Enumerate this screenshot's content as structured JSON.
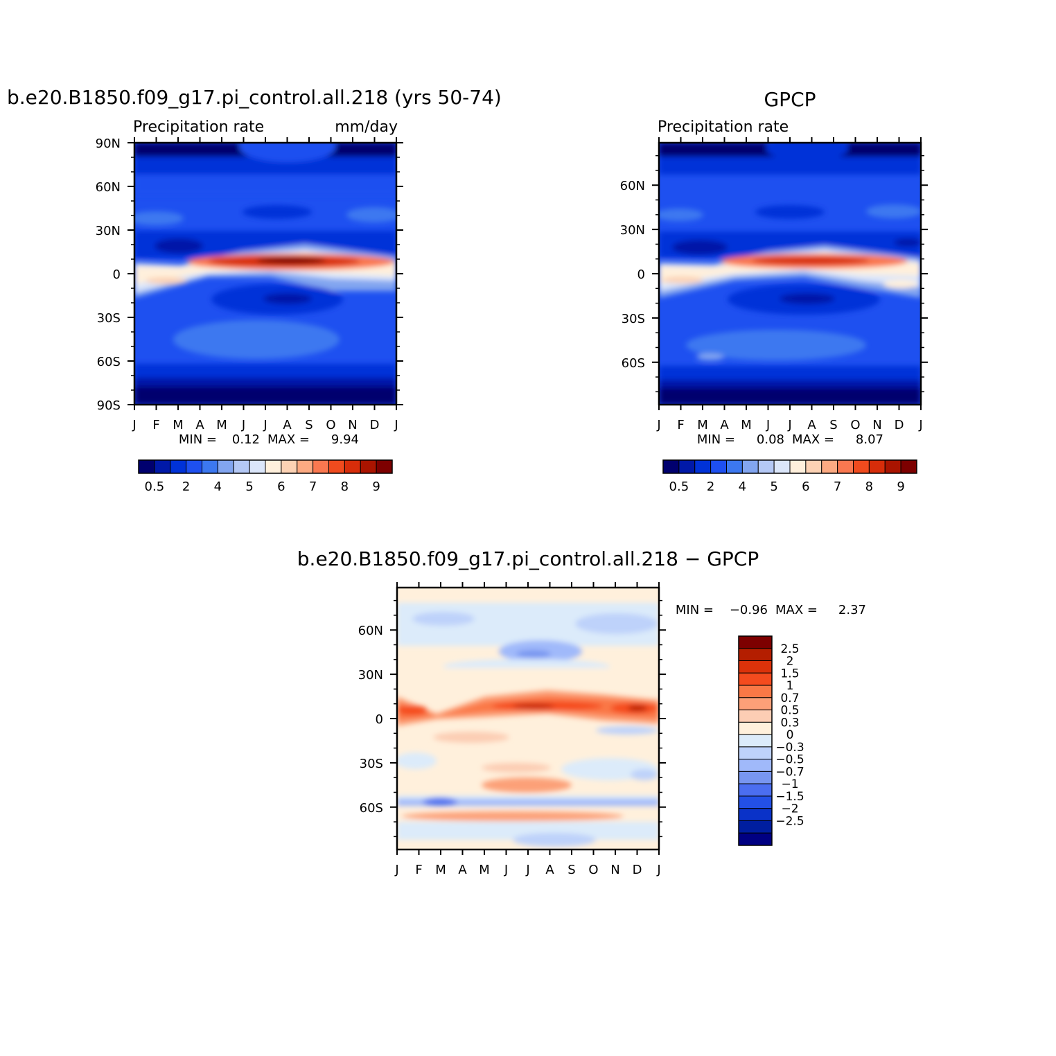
{
  "chart_data": [
    {
      "type": "heatmap",
      "title": "b.e20.B1850.f09_g17.pi_control.all.218 (yrs 50-74)",
      "subtitle_left": "Precipitation  rate",
      "subtitle_right": "mm/day",
      "x_tick_labels": [
        "J",
        "F",
        "M",
        "A",
        "M",
        "J",
        "J",
        "A",
        "S",
        "O",
        "N",
        "D",
        "J"
      ],
      "y_tick_labels": [
        "90N",
        "60N",
        "30N",
        "0",
        "30S",
        "60S",
        "90S"
      ],
      "y_tick_values": [
        90,
        60,
        30,
        0,
        -30,
        -60,
        -90
      ],
      "ylim": [
        -90,
        90
      ],
      "stats": {
        "min_label": "MIN =",
        "min": "0.12",
        "max_label": "MAX =",
        "max": "9.94"
      },
      "colorbar": {
        "orientation": "horizontal",
        "colors": [
          "#00006e",
          "#0019a8",
          "#0032d8",
          "#1e50f0",
          "#3c78f0",
          "#82a5f0",
          "#b4c8f5",
          "#dbe6fa",
          "#fff0dc",
          "#fcd2b4",
          "#fcaa82",
          "#fa7850",
          "#f04b1e",
          "#d72d0a",
          "#aa1400",
          "#7d0000"
        ],
        "labels": [
          "0.5",
          "2",
          "4",
          "5",
          "6",
          "7",
          "8",
          "9"
        ]
      }
    },
    {
      "type": "heatmap",
      "title": "GPCP",
      "subtitle_left": "Precipitation  rate",
      "x_tick_labels": [
        "J",
        "F",
        "M",
        "A",
        "M",
        "J",
        "J",
        "A",
        "S",
        "O",
        "N",
        "D",
        "J"
      ],
      "y_tick_labels": [
        "60N",
        "30N",
        "0",
        "30S",
        "60S"
      ],
      "y_tick_values": [
        60,
        30,
        0,
        -30,
        -60
      ],
      "ylim": [
        -88.75,
        88.75
      ],
      "stats": {
        "min_label": "MIN =",
        "min": "0.08",
        "max_label": "MAX =",
        "max": "8.07"
      },
      "colorbar": {
        "orientation": "horizontal",
        "colors": [
          "#00006e",
          "#0019a8",
          "#0032d8",
          "#1e50f0",
          "#3c78f0",
          "#82a5f0",
          "#b4c8f5",
          "#dbe6fa",
          "#fff0dc",
          "#fcd2b4",
          "#fcaa82",
          "#fa7850",
          "#f04b1e",
          "#d72d0a",
          "#aa1400",
          "#7d0000"
        ],
        "labels": [
          "0.5",
          "2",
          "4",
          "5",
          "6",
          "7",
          "8",
          "9"
        ]
      }
    },
    {
      "type": "heatmap",
      "title": "b.e20.B1850.f09_g17.pi_control.all.218 - GPCP",
      "x_tick_labels": [
        "J",
        "F",
        "M",
        "A",
        "M",
        "J",
        "J",
        "A",
        "S",
        "O",
        "N",
        "D",
        "J"
      ],
      "y_tick_labels": [
        "60N",
        "30N",
        "0",
        "30S",
        "60S"
      ],
      "y_tick_values": [
        60,
        30,
        0,
        -30,
        -60
      ],
      "ylim": [
        -88.75,
        88.75
      ],
      "stats": {
        "min_label": "MIN =",
        "min": "-0.96",
        "max_label": "MAX =",
        "max": "2.37"
      },
      "colorbar": {
        "orientation": "vertical",
        "colors": [
          "#7d0000",
          "#b41e00",
          "#dc320a",
          "#f54b1e",
          "#fa7846",
          "#fca078",
          "#fccdb4",
          "#fff0dc",
          "#dcebfa",
          "#bed2fa",
          "#a0b9fa",
          "#7896f0",
          "#4b6ef0",
          "#2350e6",
          "#0a32c8",
          "#001ea0",
          "#000082"
        ],
        "labels": [
          "2.5",
          "2",
          "1.5",
          "1",
          "0.7",
          "0.5",
          "0.3",
          "0",
          "-0.3",
          "-0.5",
          "-0.7",
          "-1",
          "-1.5",
          "-2",
          "-2.5"
        ]
      }
    }
  ]
}
